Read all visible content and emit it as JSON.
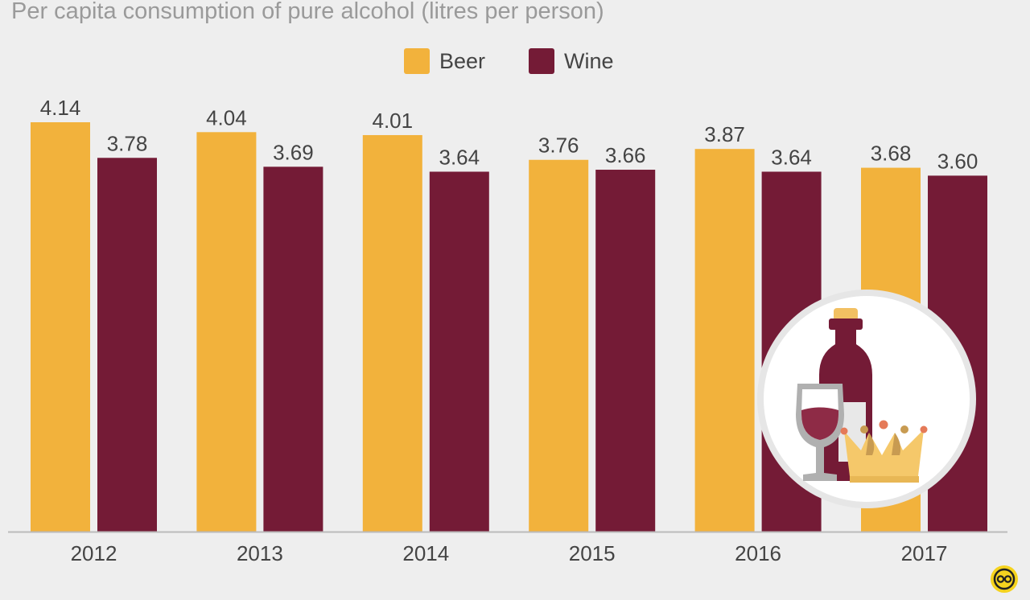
{
  "title": "Per capita consumption of pure alcohol (litres per person)",
  "colors": {
    "beer": "#f2b23c",
    "wine": "#741b36",
    "background": "#eeeeee",
    "axis": "#bbbbbb"
  },
  "legend": [
    {
      "label": "Beer",
      "color": "#f2b23c"
    },
    {
      "label": "Wine",
      "color": "#741b36"
    }
  ],
  "chart_data": {
    "type": "bar",
    "title": "Per capita consumption of pure alcohol (litres per person)",
    "categories": [
      "2012",
      "2013",
      "2014",
      "2015",
      "2016",
      "2017"
    ],
    "series": [
      {
        "name": "Beer",
        "values": [
          4.14,
          4.04,
          4.01,
          3.76,
          3.87,
          3.68
        ],
        "labels": [
          "4.14",
          "4.04",
          "4.01",
          "3.76",
          "3.87",
          "3.68"
        ]
      },
      {
        "name": "Wine",
        "values": [
          3.78,
          3.69,
          3.64,
          3.66,
          3.64,
          3.6
        ],
        "labels": [
          "3.78",
          "3.69",
          "3.64",
          "3.66",
          "3.64",
          "3.60"
        ]
      }
    ],
    "ylim": [
      0,
      4.14
    ],
    "grid": false,
    "legend_position": "top-center"
  },
  "icons": {
    "illustration": "wine-bottle-glass-crown-icon",
    "brand": "brand-logo-icon"
  }
}
